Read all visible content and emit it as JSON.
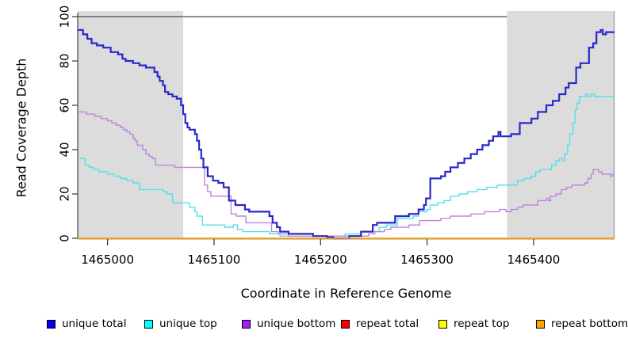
{
  "chart_data": {
    "type": "line",
    "subtype": "step-after",
    "title": "",
    "xlabel": "Coordinate in Reference Genome",
    "ylabel": "Read Coverage Depth",
    "xlim": [
      1464972,
      1465476
    ],
    "ylim": [
      0,
      100
    ],
    "x_ticks": [
      1465000,
      1465100,
      1465200,
      1465300,
      1465400
    ],
    "y_ticks": [
      0,
      20,
      40,
      60,
      80,
      100
    ],
    "grid": false,
    "legend_position": "bottom",
    "shaded_regions": [
      {
        "name": "left-flank",
        "x0": 1464972,
        "x1": 1465071,
        "color": "#dcdcdc"
      },
      {
        "name": "right-flank",
        "x0": 1465375,
        "x1": 1465476,
        "color": "#dcdcdc"
      }
    ],
    "series": [
      {
        "name": "unique total",
        "line_color": "#2828cc",
        "swatch_color": "#0000ee",
        "width": 2.2,
        "z": 4,
        "points": [
          [
            1464972,
            94
          ],
          [
            1464977,
            92
          ],
          [
            1464981,
            90
          ],
          [
            1464985,
            88
          ],
          [
            1464990,
            87
          ],
          [
            1464996,
            86
          ],
          [
            1465003,
            84
          ],
          [
            1465010,
            83
          ],
          [
            1465014,
            81
          ],
          [
            1465017,
            80
          ],
          [
            1465024,
            79
          ],
          [
            1465030,
            78
          ],
          [
            1465036,
            77
          ],
          [
            1465044,
            75
          ],
          [
            1465047,
            73
          ],
          [
            1465049,
            71
          ],
          [
            1465052,
            69
          ],
          [
            1465054,
            66
          ],
          [
            1465057,
            65
          ],
          [
            1465061,
            64
          ],
          [
            1465065,
            63
          ],
          [
            1465069,
            60
          ],
          [
            1465071,
            56
          ],
          [
            1465073,
            52
          ],
          [
            1465075,
            50
          ],
          [
            1465077,
            49
          ],
          [
            1465082,
            47
          ],
          [
            1465084,
            44
          ],
          [
            1465086,
            40
          ],
          [
            1465088,
            36
          ],
          [
            1465090,
            32
          ],
          [
            1465094,
            28
          ],
          [
            1465099,
            26
          ],
          [
            1465104,
            25
          ],
          [
            1465109,
            23
          ],
          [
            1465114,
            17
          ],
          [
            1465120,
            15
          ],
          [
            1465129,
            13
          ],
          [
            1465133,
            12
          ],
          [
            1465152,
            10
          ],
          [
            1465155,
            7
          ],
          [
            1465159,
            5
          ],
          [
            1465162,
            3
          ],
          [
            1465170,
            2
          ],
          [
            1465193,
            1
          ],
          [
            1465206,
            0.5
          ],
          [
            1465212,
            0
          ],
          [
            1465227,
            1
          ],
          [
            1465238,
            3
          ],
          [
            1465249,
            6
          ],
          [
            1465253,
            7
          ],
          [
            1465270,
            10
          ],
          [
            1465283,
            11
          ],
          [
            1465292,
            13
          ],
          [
            1465297,
            15
          ],
          [
            1465299,
            18
          ],
          [
            1465303,
            27
          ],
          [
            1465313,
            28
          ],
          [
            1465317,
            30
          ],
          [
            1465322,
            32
          ],
          [
            1465329,
            34
          ],
          [
            1465335,
            36
          ],
          [
            1465341,
            38
          ],
          [
            1465347,
            40
          ],
          [
            1465352,
            42
          ],
          [
            1465358,
            44
          ],
          [
            1465362,
            46
          ],
          [
            1465367,
            48
          ],
          [
            1465369,
            46
          ],
          [
            1465379,
            47
          ],
          [
            1465387,
            52
          ],
          [
            1465398,
            54
          ],
          [
            1465404,
            57
          ],
          [
            1465412,
            60
          ],
          [
            1465418,
            62
          ],
          [
            1465424,
            65
          ],
          [
            1465430,
            68
          ],
          [
            1465433,
            70
          ],
          [
            1465440,
            77
          ],
          [
            1465444,
            79
          ],
          [
            1465452,
            86
          ],
          [
            1465456,
            88
          ],
          [
            1465459,
            93
          ],
          [
            1465463,
            94
          ],
          [
            1465465,
            92
          ],
          [
            1465468,
            93
          ]
        ]
      },
      {
        "name": "unique top",
        "line_color": "#4fe1ec",
        "swatch_color": "#00ffff",
        "width": 1.4,
        "z": 2,
        "points": [
          [
            1464972,
            36
          ],
          [
            1464979,
            33
          ],
          [
            1464983,
            32
          ],
          [
            1464987,
            31
          ],
          [
            1464992,
            30
          ],
          [
            1465000,
            29
          ],
          [
            1465006,
            28
          ],
          [
            1465012,
            27
          ],
          [
            1465018,
            26
          ],
          [
            1465024,
            25
          ],
          [
            1465030,
            22
          ],
          [
            1465052,
            21
          ],
          [
            1465056,
            20
          ],
          [
            1465061,
            16
          ],
          [
            1465077,
            14
          ],
          [
            1465082,
            12
          ],
          [
            1465084,
            10
          ],
          [
            1465089,
            6
          ],
          [
            1465110,
            5
          ],
          [
            1465118,
            6
          ],
          [
            1465122,
            4
          ],
          [
            1465127,
            3
          ],
          [
            1465152,
            2
          ],
          [
            1465162,
            1
          ],
          [
            1465223,
            2
          ],
          [
            1465238,
            3
          ],
          [
            1465255,
            5
          ],
          [
            1465262,
            6
          ],
          [
            1465272,
            9
          ],
          [
            1465287,
            10
          ],
          [
            1465292,
            12
          ],
          [
            1465300,
            13
          ],
          [
            1465303,
            15
          ],
          [
            1465310,
            16
          ],
          [
            1465316,
            17
          ],
          [
            1465322,
            19
          ],
          [
            1465330,
            20
          ],
          [
            1465338,
            21
          ],
          [
            1465347,
            22
          ],
          [
            1465356,
            23
          ],
          [
            1465366,
            24
          ],
          [
            1465385,
            26
          ],
          [
            1465391,
            27
          ],
          [
            1465398,
            28
          ],
          [
            1465402,
            30
          ],
          [
            1465406,
            31
          ],
          [
            1465417,
            33
          ],
          [
            1465421,
            35
          ],
          [
            1465424,
            36
          ],
          [
            1465427,
            35
          ],
          [
            1465429,
            38
          ],
          [
            1465432,
            42
          ],
          [
            1465434,
            47
          ],
          [
            1465437,
            52
          ],
          [
            1465439,
            58
          ],
          [
            1465441,
            61
          ],
          [
            1465443,
            64
          ],
          [
            1465449,
            65
          ],
          [
            1465451,
            64
          ],
          [
            1465454,
            65
          ],
          [
            1465457,
            64
          ]
        ]
      },
      {
        "name": "unique bottom",
        "line_color": "#bd85dc",
        "swatch_color": "#a020f0",
        "width": 1.4,
        "z": 3,
        "points": [
          [
            1464972,
            57
          ],
          [
            1464980,
            56
          ],
          [
            1464988,
            55
          ],
          [
            1464994,
            54
          ],
          [
            1465000,
            53
          ],
          [
            1465004,
            52
          ],
          [
            1465008,
            51
          ],
          [
            1465012,
            50
          ],
          [
            1465015,
            49
          ],
          [
            1465018,
            48
          ],
          [
            1465021,
            47
          ],
          [
            1465024,
            45
          ],
          [
            1465026,
            44
          ],
          [
            1465028,
            42
          ],
          [
            1465033,
            40
          ],
          [
            1465036,
            38
          ],
          [
            1465039,
            37
          ],
          [
            1465042,
            36
          ],
          [
            1465045,
            33
          ],
          [
            1465063,
            32
          ],
          [
            1465091,
            24
          ],
          [
            1465094,
            21
          ],
          [
            1465097,
            19
          ],
          [
            1465116,
            11
          ],
          [
            1465121,
            10
          ],
          [
            1465130,
            7
          ],
          [
            1465154,
            3
          ],
          [
            1465160,
            2
          ],
          [
            1465170,
            1
          ],
          [
            1465245,
            2
          ],
          [
            1465251,
            3
          ],
          [
            1465260,
            4
          ],
          [
            1465266,
            5
          ],
          [
            1465283,
            6
          ],
          [
            1465293,
            8
          ],
          [
            1465313,
            9
          ],
          [
            1465322,
            10
          ],
          [
            1465341,
            11
          ],
          [
            1465354,
            12
          ],
          [
            1465368,
            13
          ],
          [
            1465374,
            12
          ],
          [
            1465379,
            13
          ],
          [
            1465385,
            14
          ],
          [
            1465390,
            15
          ],
          [
            1465404,
            17
          ],
          [
            1465412,
            18
          ],
          [
            1465414,
            17
          ],
          [
            1465416,
            19
          ],
          [
            1465421,
            20
          ],
          [
            1465426,
            22
          ],
          [
            1465431,
            23
          ],
          [
            1465436,
            24
          ],
          [
            1465448,
            25
          ],
          [
            1465451,
            27
          ],
          [
            1465454,
            29
          ],
          [
            1465456,
            31
          ],
          [
            1465461,
            30
          ],
          [
            1465464,
            29
          ],
          [
            1465472,
            28
          ],
          [
            1465474,
            29
          ]
        ]
      },
      {
        "name": "repeat total",
        "line_color": "#ff0000",
        "swatch_color": "#ff0000",
        "width": 1.4,
        "z": 0,
        "points": [
          [
            1464972,
            0
          ]
        ]
      },
      {
        "name": "repeat top",
        "line_color": "#ffff00",
        "swatch_color": "#ffff00",
        "width": 1.4,
        "z": 1,
        "points": [
          [
            1464972,
            0
          ]
        ]
      },
      {
        "name": "repeat bottom",
        "line_color": "#ffa500",
        "swatch_color": "#ffa500",
        "width": 1.6,
        "z": 5,
        "points": [
          [
            1464972,
            0
          ]
        ]
      }
    ]
  }
}
